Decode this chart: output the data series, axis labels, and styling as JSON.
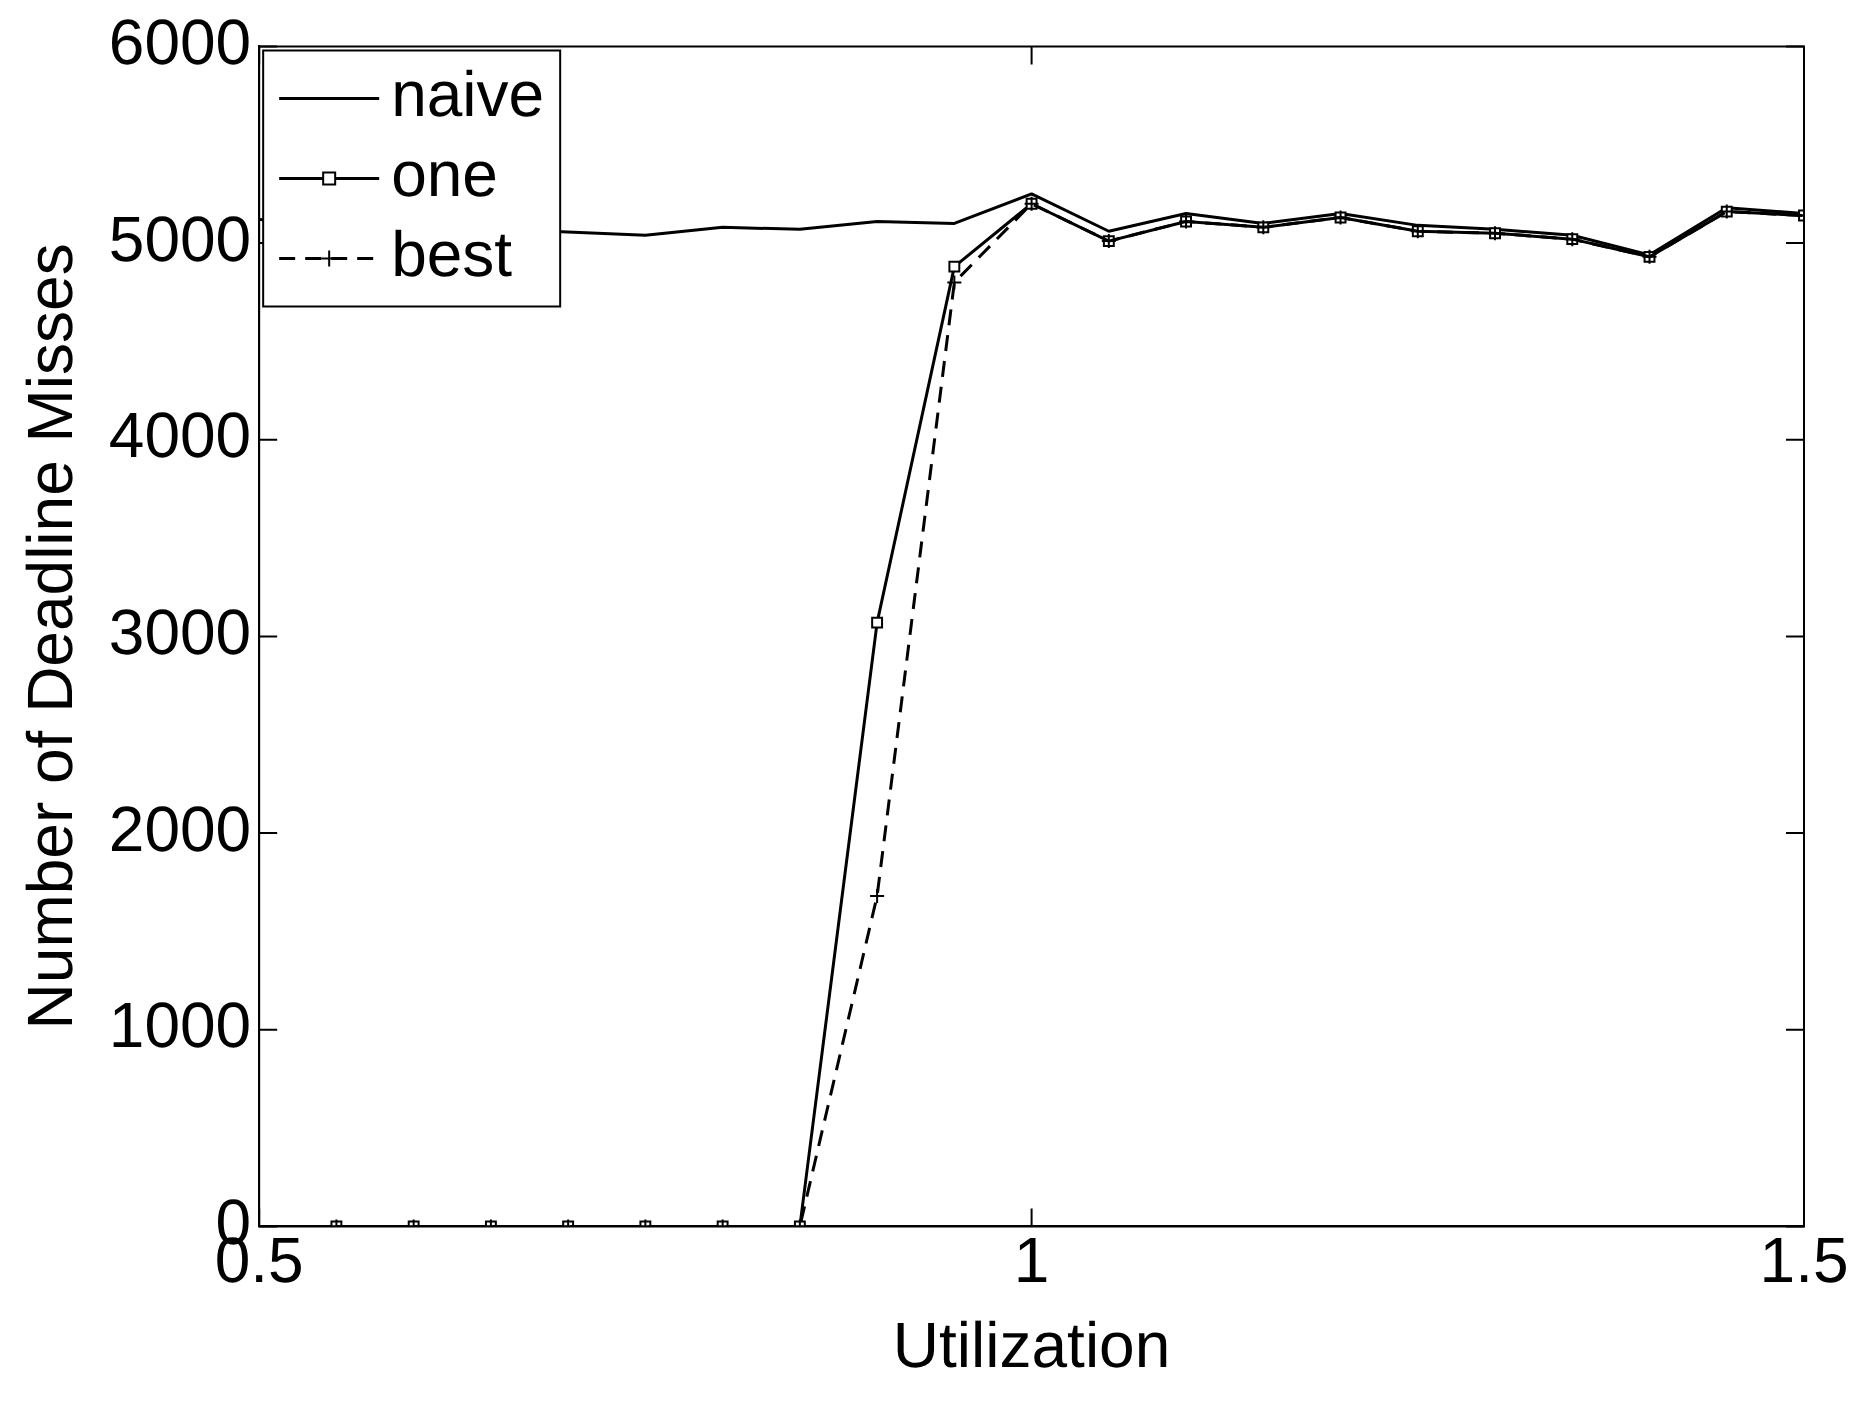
{
  "chart_data": {
    "type": "line",
    "xlabel": "Utilization",
    "ylabel": "Number of Deadline Misses",
    "xlim": [
      0.5,
      1.5
    ],
    "xticks": [
      0.5,
      1,
      1.5
    ],
    "ylim": [
      0,
      6000
    ],
    "yticks": [
      0,
      1000,
      2000,
      3000,
      4000,
      5000,
      6000
    ],
    "grid": false,
    "legend": "top left",
    "series": [
      {
        "name": "naive",
        "color": "#000000",
        "marker": "none",
        "line_style": "solid",
        "x": [
          0.5,
          0.55,
          0.6,
          0.65,
          0.7,
          0.75,
          0.8,
          0.85,
          0.9,
          0.95,
          1.0,
          1.05,
          1.1,
          1.15,
          1.2,
          1.25,
          1.3,
          1.35,
          1.4,
          1.45,
          1.5
        ],
        "values": [
          5120,
          null,
          null,
          null,
          null,
          5040,
          5080,
          5070,
          5110,
          5100,
          5250,
          5060,
          5150,
          5100,
          5150,
          5090,
          5070,
          5040,
          4940,
          5180,
          5150
        ]
      },
      {
        "name": "one",
        "color": "#000000",
        "marker": "square",
        "line_style": "solid",
        "x": [
          0.55,
          0.6,
          0.65,
          0.7,
          0.75,
          0.8,
          0.85,
          0.9,
          0.95,
          1.0,
          1.05,
          1.1,
          1.15,
          1.2,
          1.25,
          1.3,
          1.35,
          1.4,
          1.45,
          1.5
        ],
        "values": [
          0,
          0,
          0,
          0,
          0,
          0,
          0,
          3070,
          4880,
          5200,
          5010,
          5110,
          5080,
          5130,
          5060,
          5050,
          5020,
          4930,
          5160,
          5140
        ]
      },
      {
        "name": "best",
        "color": "#000000",
        "marker": "cross",
        "line_style": "dashed",
        "x": [
          0.55,
          0.6,
          0.65,
          0.7,
          0.75,
          0.8,
          0.85,
          0.9,
          0.95,
          1.0,
          1.05,
          1.1,
          1.15,
          1.2,
          1.25,
          1.3,
          1.35,
          1.4,
          1.45,
          1.5
        ],
        "values": [
          0,
          0,
          0,
          0,
          0,
          0,
          0,
          1680,
          4800,
          5200,
          5010,
          5110,
          5080,
          5130,
          5060,
          5050,
          5020,
          4930,
          5160,
          5140
        ]
      }
    ]
  }
}
